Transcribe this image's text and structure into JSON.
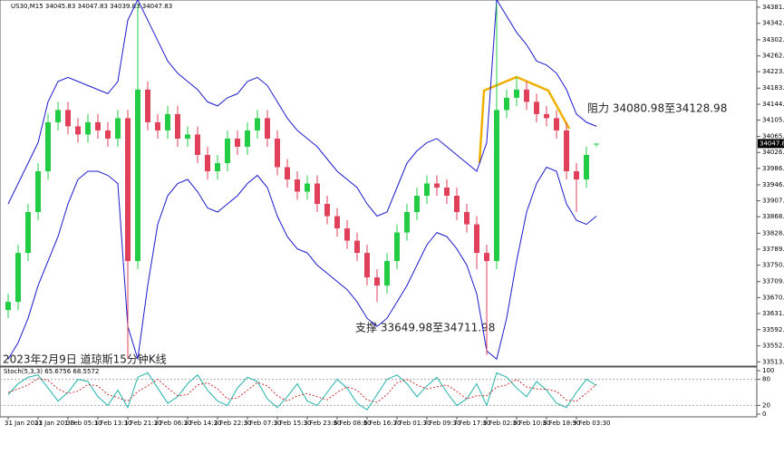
{
  "chart_data": [
    {
      "type": "candlestick",
      "header": "US30,M15  34045.83 34047.83 34039.83 34047.83",
      "categories": [
        "31 Jan 2023",
        null,
        null,
        "31 Jan 20:30",
        null,
        null,
        "1 Feb 05:30",
        null,
        null,
        "1 Feb 13:30",
        null,
        null,
        "1 Feb 21:30",
        null,
        null,
        "2 Feb 06:30",
        null,
        null,
        "2 Feb 14:30",
        null,
        null,
        "2 Feb 22:30",
        null,
        null,
        "3 Feb 07:30",
        null,
        null,
        "3 Feb 15:30",
        null,
        null,
        "3 Feb 23:30",
        null,
        null,
        "6 Feb 08:30",
        null,
        null,
        "6 Feb 16:30",
        null,
        null,
        "7 Feb 01:30",
        null,
        null,
        "7 Feb 09:30",
        null,
        null,
        "7 Feb 17:30",
        null,
        null,
        "8 Feb 02:30",
        null,
        null,
        "8 Feb 10:30",
        null,
        null,
        "8 Feb 18:30",
        null,
        null,
        "9 Feb 03:30",
        null,
        null
      ],
      "open": [
        33640,
        33660,
        33780,
        33880,
        33980,
        34100,
        34130,
        34090,
        34070,
        34100,
        34080,
        34060,
        34110,
        33760,
        34180,
        34100,
        34080,
        34120,
        34060,
        34070,
        34020,
        33980,
        34000,
        34060,
        34040,
        34080,
        34110,
        34060,
        33990,
        33960,
        33930,
        33950,
        33900,
        33870,
        33840,
        33810,
        33780,
        33720,
        33700,
        33760,
        33830,
        33880,
        33920,
        33950,
        33940,
        33920,
        33880,
        33850,
        33780,
        33760,
        34130,
        34160,
        34180,
        34150,
        34120,
        34110,
        34080,
        33980,
        33960,
        34045.83
      ],
      "high": [
        33680,
        33800,
        33900,
        34000,
        34120,
        34150,
        34150,
        34110,
        34120,
        34120,
        34100,
        34130,
        34130,
        34390,
        34200,
        34120,
        34140,
        34140,
        34090,
        34090,
        34040,
        34020,
        34080,
        34080,
        34100,
        34130,
        34130,
        34080,
        34010,
        33980,
        33970,
        33970,
        33920,
        33890,
        33860,
        33830,
        33800,
        33740,
        33780,
        33850,
        33900,
        33940,
        33970,
        33970,
        33960,
        33940,
        33900,
        33870,
        33800,
        34390,
        34180,
        34210,
        34200,
        34170,
        34140,
        34130,
        34100,
        34000,
        34040,
        34047.83
      ],
      "low": [
        33620,
        33640,
        33760,
        33860,
        33960,
        34080,
        34070,
        34050,
        34050,
        34060,
        34040,
        34040,
        33520,
        33740,
        34080,
        34060,
        34060,
        34040,
        34040,
        34000,
        33960,
        33960,
        33980,
        34020,
        34020,
        34060,
        34040,
        33970,
        33940,
        33910,
        33910,
        33880,
        33850,
        33820,
        33790,
        33760,
        33700,
        33660,
        33680,
        33740,
        33810,
        33860,
        33900,
        33920,
        33900,
        33860,
        33830,
        33740,
        33530,
        33740,
        34110,
        34140,
        34130,
        34100,
        34090,
        34060,
        33960,
        33880,
        33940,
        34039.83
      ],
      "close": [
        33660,
        33780,
        33880,
        33980,
        34100,
        34130,
        34090,
        34070,
        34100,
        34080,
        34060,
        34110,
        33760,
        34180,
        34100,
        34080,
        34120,
        34060,
        34070,
        34020,
        33980,
        34000,
        34060,
        34040,
        34080,
        34110,
        34060,
        33990,
        33960,
        33930,
        33950,
        33900,
        33870,
        33840,
        33810,
        33780,
        33720,
        33700,
        33760,
        33830,
        33880,
        33920,
        33950,
        33940,
        33920,
        33880,
        33850,
        33780,
        33760,
        34130,
        34160,
        34180,
        34150,
        34120,
        34110,
        34080,
        33980,
        33960,
        34020,
        34047.83
      ],
      "up_color": "#22cc44",
      "down_color": "#e0405a",
      "series": [
        {
          "color": "#1a1acc",
          "values": [
            33900,
            33950,
            34000,
            34050,
            34150,
            34200,
            34210,
            34200,
            34190,
            34180,
            34170,
            34200,
            34350,
            34400,
            34350,
            34300,
            34250,
            34220,
            34200,
            34180,
            34150,
            34140,
            34160,
            34170,
            34200,
            34210,
            34190,
            34150,
            34110,
            34080,
            34060,
            34040,
            34010,
            33980,
            33960,
            33940,
            33900,
            33870,
            33880,
            33940,
            34000,
            34030,
            34050,
            34060,
            34040,
            34020,
            34000,
            33980,
            34050,
            34400,
            34360,
            34320,
            34290,
            34250,
            34240,
            34220,
            34180,
            34120,
            34100,
            34090
          ]
        },
        {
          "color": "#1a1acc",
          "values": [
            33520,
            33560,
            33620,
            33700,
            33760,
            33820,
            33900,
            33960,
            33980,
            33980,
            33970,
            33950,
            33600,
            33520,
            33700,
            33850,
            33920,
            33950,
            33960,
            33930,
            33890,
            33880,
            33900,
            33920,
            33950,
            33970,
            33940,
            33870,
            33820,
            33790,
            33780,
            33750,
            33730,
            33710,
            33690,
            33660,
            33620,
            33600,
            33620,
            33660,
            33700,
            33750,
            33800,
            33830,
            33820,
            33790,
            33750,
            33680,
            33540,
            33520,
            33620,
            33760,
            33880,
            33950,
            33990,
            33980,
            33900,
            33860,
            33850,
            33870
          ]
        }
      ],
      "ylim": [
        33505,
        34395
      ],
      "yticks": [
        34381.83,
        {
          "value": 34342.3,
          "label": "34342.30"
        },
        34302.05,
        34262.48,
        34223.85,
        {
          "value": 34183.6,
          "label": "34183.60"
        },
        34144.08,
        {
          "value": 34105.4,
          "label": "34105.40"
        },
        {
          "value": 34065.1,
          "label": "34065.10"
        },
        34026.05,
        33986.95,
        {
          "value": 33946.7,
          "label": "33946.70"
        },
        {
          "value": 33907.6,
          "label": "33907.60"
        },
        {
          "value": 33868.5,
          "label": "33868.50"
        },
        33828.25,
        33789.15,
        33750.05,
        {
          "value": 33709.8,
          "label": "33709.80"
        },
        {
          "value": 33670.7,
          "label": "33670.70"
        },
        {
          "value": 33631.6,
          "label": "33631.60"
        },
        {
          "value": 33592.1,
          "label": "33592.10"
        },
        33552.25,
        33513.15
      ],
      "annotations": [
        "阻力 34080.98至34128.98",
        "支撑 33649.98至34711.98",
        "2023年2月9日 道琼斯15分钟K线"
      ]
    },
    {
      "type": "line",
      "header": "Stoch(5,3,3) 65.6756 68.5572",
      "series": [
        {
          "color": "#20b2aa",
          "style": "solid",
          "values": [
            45,
            70,
            85,
            90,
            60,
            30,
            50,
            80,
            75,
            40,
            20,
            55,
            15,
            85,
            95,
            60,
            25,
            40,
            70,
            90,
            55,
            30,
            20,
            60,
            85,
            75,
            35,
            15,
            40,
            70,
            30,
            20,
            50,
            80,
            60,
            25,
            10,
            45,
            80,
            90,
            70,
            40,
            65,
            85,
            50,
            20,
            35,
            70,
            20,
            95,
            85,
            60,
            40,
            75,
            55,
            25,
            15,
            50,
            80,
            65.6756
          ]
        },
        {
          "color": "#cc3333",
          "style": "dashed",
          "values": [
            50,
            58,
            67,
            82,
            78,
            58,
            47,
            53,
            68,
            65,
            45,
            38,
            30,
            52,
            65,
            80,
            60,
            42,
            45,
            67,
            72,
            58,
            35,
            37,
            55,
            73,
            65,
            42,
            30,
            42,
            47,
            40,
            33,
            50,
            63,
            55,
            32,
            27,
            45,
            72,
            80,
            67,
            58,
            63,
            67,
            52,
            35,
            42,
            42,
            62,
            67,
            80,
            62,
            58,
            57,
            52,
            32,
            30,
            48,
            68.5572
          ]
        }
      ],
      "ylim": [
        0,
        100
      ],
      "yticks": [
        100,
        80,
        20,
        0
      ]
    }
  ]
}
